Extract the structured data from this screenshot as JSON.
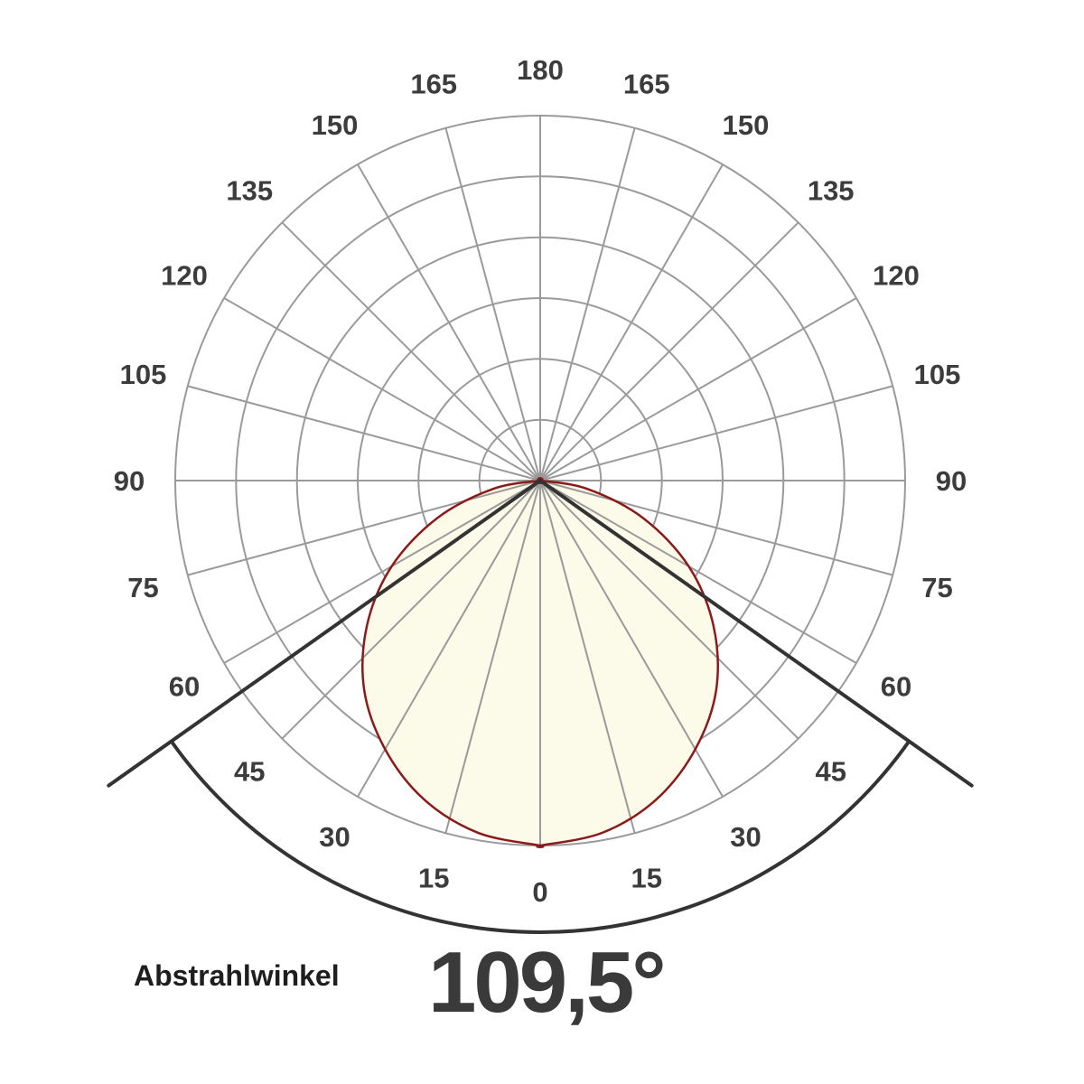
{
  "chart_data": {
    "type": "polar",
    "angle_ticks_left": [
      "0",
      "15",
      "30",
      "45",
      "60",
      "75",
      "90",
      "105",
      "120",
      "135",
      "150",
      "165",
      "180"
    ],
    "angle_ticks_right": [
      "15",
      "30",
      "45",
      "60",
      "75",
      "90",
      "105",
      "120",
      "135",
      "150",
      "165"
    ],
    "radial_rings": 6,
    "angle_step_deg": 15,
    "curve": {
      "angles_deg": [
        0,
        10,
        20,
        30,
        40,
        50,
        60,
        70,
        80,
        90
      ],
      "relative_intensity": [
        1.0,
        0.98,
        0.93,
        0.85,
        0.75,
        0.62,
        0.47,
        0.3,
        0.13,
        0.0
      ],
      "fill_color": "#fcfae8",
      "stroke_color": "#8b1a1a"
    },
    "beam_angle_deg": 109.5,
    "beam_line_color": "#333333",
    "grid_color": "#9a9a9a"
  },
  "annotation": {
    "label": "Abstrahlwinkel",
    "value": "109,5°"
  }
}
